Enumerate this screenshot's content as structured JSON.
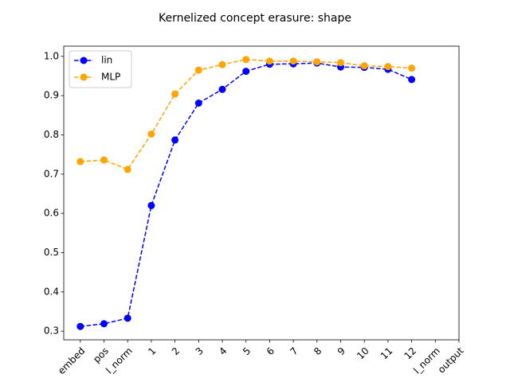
{
  "chart_data": {
    "type": "line",
    "title": "Kernelized concept erasure: shape",
    "categories": [
      "embed",
      "pos",
      "l_norm",
      "1",
      "2",
      "3",
      "4",
      "5",
      "6",
      "7",
      "8",
      "9",
      "10",
      "11",
      "12",
      "l_norm",
      "output"
    ],
    "series": [
      {
        "name": "lin",
        "color": "#0000ff",
        "values": [
          0.312,
          0.319,
          0.333,
          0.62,
          0.787,
          0.881,
          0.916,
          0.962,
          0.98,
          0.981,
          0.983,
          0.973,
          0.972,
          0.967,
          0.941,
          null,
          null
        ]
      },
      {
        "name": "MLP",
        "color": "#ffa500",
        "values": [
          0.732,
          0.736,
          0.712,
          0.802,
          0.904,
          0.965,
          0.979,
          0.992,
          0.988,
          0.988,
          0.986,
          0.984,
          0.976,
          0.974,
          0.97,
          null,
          null
        ]
      }
    ],
    "ylim": [
      0.278,
      1.026
    ],
    "yticks": [
      {
        "value": 0.3,
        "label": "0.3"
      },
      {
        "value": 0.4,
        "label": "0.4"
      },
      {
        "value": 0.5,
        "label": "0.5"
      },
      {
        "value": 0.6,
        "label": "0.6"
      },
      {
        "value": 0.7,
        "label": "0.7"
      },
      {
        "value": 0.8,
        "label": "0.8"
      },
      {
        "value": 0.9,
        "label": "0.9"
      },
      {
        "value": 1.0,
        "label": "1.0"
      }
    ],
    "legend": "upper left"
  }
}
